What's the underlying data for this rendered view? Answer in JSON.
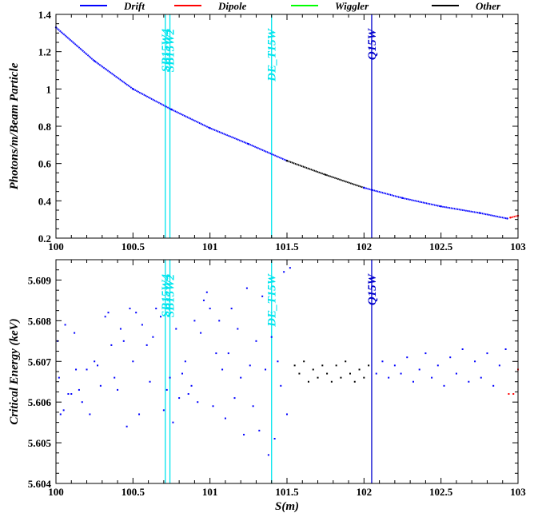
{
  "legend": [
    {
      "name": "Drift",
      "color": "#0000ff"
    },
    {
      "name": "Dipole",
      "color": "#ff0000"
    },
    {
      "name": "Wiggler",
      "color": "#00ff00"
    },
    {
      "name": "Other",
      "color": "#000000"
    }
  ],
  "markers": [
    {
      "label": "SB15W4",
      "s": 100.71,
      "color": "#00e5ee"
    },
    {
      "label": "SB15W2",
      "s": 100.74,
      "color": "#00e5ee"
    },
    {
      "label": "DE_T15W",
      "s": 101.4,
      "color": "#00e5ee"
    },
    {
      "label": "Q15W",
      "s": 102.05,
      "color": "#0000cd"
    }
  ],
  "chart_data": [
    {
      "type": "scatter",
      "xlabel": "",
      "ylabel": "Photons/m/Beam Particle",
      "xlim": [
        100,
        103
      ],
      "ylim": [
        0.2,
        1.4
      ],
      "xticks": [
        "100",
        "100.5",
        "101",
        "101.5",
        "102",
        "102.5",
        "103"
      ],
      "yticks": [
        "0.2",
        "0.4",
        "0.6",
        "0.8",
        "1",
        "1.2",
        "1.4"
      ],
      "grid": false,
      "legend_position": "top",
      "series": [
        {
          "name": "Drift",
          "color": "#0000ff",
          "points": [
            [
              100.0,
              1.33
            ],
            [
              100.25,
              1.15
            ],
            [
              100.5,
              1.0
            ],
            [
              100.75,
              0.89
            ],
            [
              101.0,
              0.79
            ],
            [
              101.25,
              0.705
            ],
            [
              101.5,
              0.615
            ]
          ]
        },
        {
          "name": "Other",
          "color": "#000000",
          "points": [
            [
              101.5,
              0.615
            ],
            [
              101.75,
              0.54
            ],
            [
              102.0,
              0.47
            ]
          ]
        },
        {
          "name": "Drift",
          "color": "#0000ff",
          "points": [
            [
              102.0,
              0.47
            ],
            [
              102.25,
              0.415
            ],
            [
              102.5,
              0.37
            ],
            [
              102.75,
              0.335
            ],
            [
              102.93,
              0.305
            ]
          ]
        },
        {
          "name": "Dipole",
          "color": "#ff0000",
          "points": [
            [
              102.95,
              0.31
            ],
            [
              103.0,
              0.32
            ]
          ]
        }
      ]
    },
    {
      "type": "scatter",
      "xlabel": "S(m)",
      "ylabel": "Critical Energy (keV)",
      "xlim": [
        100,
        103
      ],
      "ylim": [
        5.604,
        5.6095
      ],
      "xticks": [
        "100",
        "100.5",
        "101",
        "101.5",
        "102",
        "102.5",
        "103"
      ],
      "yticks": [
        "5.604",
        "5.605",
        "5.606",
        "5.607",
        "5.608",
        "5.609"
      ],
      "grid": false,
      "series": [
        {
          "name": "Drift",
          "color": "#0000ff",
          "points": [
            [
              100.01,
              5.6075
            ],
            [
              100.02,
              5.6066
            ],
            [
              100.03,
              5.6057
            ],
            [
              100.05,
              5.6058
            ],
            [
              100.06,
              5.6079
            ],
            [
              100.08,
              5.6062
            ],
            [
              100.1,
              5.6062
            ],
            [
              100.12,
              5.6077
            ],
            [
              100.13,
              5.6068
            ],
            [
              100.15,
              5.6063
            ],
            [
              100.17,
              5.606
            ],
            [
              100.2,
              5.6068
            ],
            [
              100.22,
              5.6057
            ],
            [
              100.25,
              5.607
            ],
            [
              100.27,
              5.6069
            ],
            [
              100.29,
              5.6064
            ],
            [
              100.32,
              5.6081
            ],
            [
              100.34,
              5.6082
            ],
            [
              100.36,
              5.6074
            ],
            [
              100.38,
              5.6066
            ],
            [
              100.4,
              5.6063
            ],
            [
              100.42,
              5.6078
            ],
            [
              100.44,
              5.6075
            ],
            [
              100.46,
              5.6054
            ],
            [
              100.48,
              5.6083
            ],
            [
              100.5,
              5.607
            ],
            [
              100.52,
              5.6082
            ],
            [
              100.54,
              5.6057
            ],
            [
              100.56,
              5.6079
            ],
            [
              100.59,
              5.6074
            ],
            [
              100.61,
              5.6065
            ],
            [
              100.63,
              5.6076
            ],
            [
              100.65,
              5.6083
            ],
            [
              100.68,
              5.6081
            ],
            [
              100.7,
              5.6058
            ],
            [
              100.72,
              5.6063
            ],
            [
              100.74,
              5.6066
            ],
            [
              100.76,
              5.6055
            ],
            [
              100.78,
              5.6078
            ],
            [
              100.8,
              5.6061
            ],
            [
              100.82,
              5.6067
            ],
            [
              100.84,
              5.607
            ],
            [
              100.86,
              5.6062
            ],
            [
              100.88,
              5.6064
            ],
            [
              100.9,
              5.608
            ],
            [
              100.92,
              5.606
            ],
            [
              100.94,
              5.6077
            ],
            [
              100.96,
              5.6085
            ],
            [
              100.98,
              5.6087
            ],
            [
              101.0,
              5.6083
            ],
            [
              101.02,
              5.6059
            ],
            [
              101.04,
              5.6072
            ],
            [
              101.06,
              5.608
            ],
            [
              101.08,
              5.6068
            ],
            [
              101.1,
              5.6056
            ],
            [
              101.12,
              5.6072
            ],
            [
              101.14,
              5.6083
            ],
            [
              101.16,
              5.6061
            ],
            [
              101.18,
              5.6078
            ],
            [
              101.2,
              5.6066
            ],
            [
              101.22,
              5.6052
            ],
            [
              101.24,
              5.6088
            ],
            [
              101.26,
              5.6069
            ],
            [
              101.28,
              5.6059
            ],
            [
              101.3,
              5.6075
            ],
            [
              101.32,
              5.6053
            ],
            [
              101.34,
              5.6086
            ],
            [
              101.36,
              5.6068
            ],
            [
              101.38,
              5.6047
            ],
            [
              101.4,
              5.6076
            ],
            [
              101.42,
              5.6051
            ],
            [
              101.44,
              5.607
            ],
            [
              101.46,
              5.6064
            ],
            [
              101.48,
              5.6092
            ],
            [
              101.5,
              5.6057
            ],
            [
              101.52,
              5.6093
            ]
          ]
        },
        {
          "name": "Other",
          "color": "#000000",
          "points": [
            [
              101.55,
              5.6069
            ],
            [
              101.58,
              5.6067
            ],
            [
              101.61,
              5.607
            ],
            [
              101.64,
              5.6065
            ],
            [
              101.67,
              5.6068
            ],
            [
              101.7,
              5.6066
            ],
            [
              101.73,
              5.6069
            ],
            [
              101.76,
              5.6067
            ],
            [
              101.79,
              5.6065
            ],
            [
              101.82,
              5.6069
            ],
            [
              101.85,
              5.6066
            ],
            [
              101.88,
              5.607
            ],
            [
              101.91,
              5.6067
            ],
            [
              101.94,
              5.6065
            ],
            [
              101.97,
              5.6068
            ],
            [
              102.0,
              5.6066
            ],
            [
              102.03,
              5.6069
            ]
          ]
        },
        {
          "name": "Drift",
          "color": "#0000ff",
          "points": [
            [
              102.08,
              5.6067
            ],
            [
              102.12,
              5.607
            ],
            [
              102.16,
              5.6066
            ],
            [
              102.2,
              5.6069
            ],
            [
              102.24,
              5.6067
            ],
            [
              102.28,
              5.6071
            ],
            [
              102.32,
              5.6065
            ],
            [
              102.36,
              5.6068
            ],
            [
              102.4,
              5.6072
            ],
            [
              102.44,
              5.6066
            ],
            [
              102.48,
              5.6069
            ],
            [
              102.52,
              5.6064
            ],
            [
              102.56,
              5.6071
            ],
            [
              102.6,
              5.6067
            ],
            [
              102.64,
              5.6073
            ],
            [
              102.68,
              5.6065
            ],
            [
              102.72,
              5.607
            ],
            [
              102.76,
              5.6066
            ],
            [
              102.8,
              5.6072
            ],
            [
              102.84,
              5.6064
            ],
            [
              102.88,
              5.6069
            ],
            [
              102.92,
              5.6073
            ]
          ]
        },
        {
          "name": "Dipole",
          "color": "#ff0000",
          "points": [
            [
              102.94,
              5.6062
            ],
            [
              102.97,
              5.6062
            ],
            [
              103.0,
              5.6068
            ]
          ]
        }
      ]
    }
  ]
}
